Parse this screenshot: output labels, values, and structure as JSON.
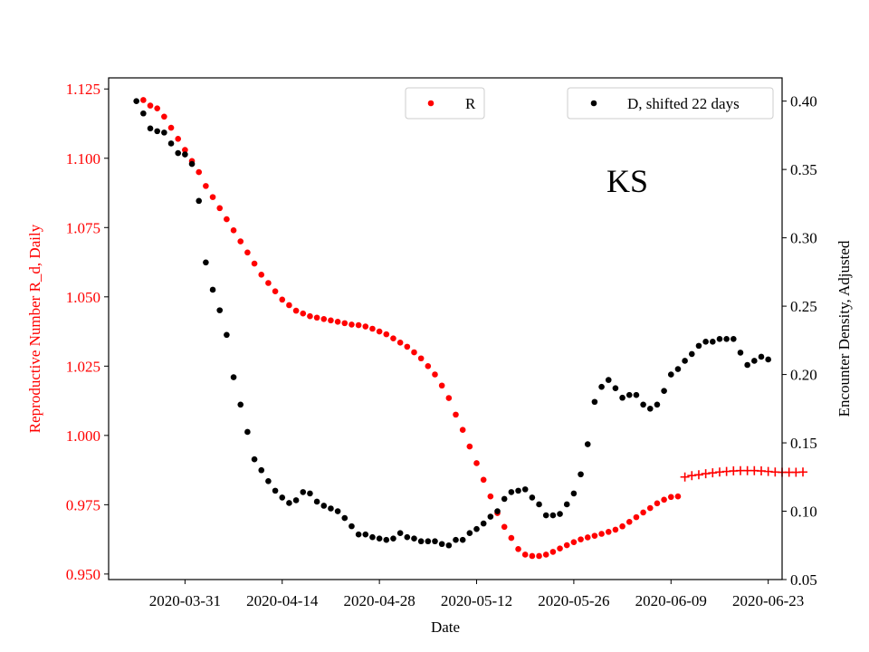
{
  "chart_data": {
    "type": "scatter",
    "annotation": "KS",
    "xlabel": "Date",
    "ylabel_left": "Reproductive Number R_d, Daily",
    "ylabel_right": "Encounter Density, Adjusted",
    "x_ticks": [
      "2020-03-31",
      "2020-04-14",
      "2020-04-28",
      "2020-05-12",
      "2020-05-26",
      "2020-06-09",
      "2020-06-23"
    ],
    "y_left_ticks": [
      "0.950",
      "0.975",
      "1.000",
      "1.025",
      "1.050",
      "1.075",
      "1.100",
      "1.125"
    ],
    "y_right_ticks": [
      "0.05",
      "0.10",
      "0.15",
      "0.20",
      "0.25",
      "0.30",
      "0.35",
      "0.40"
    ],
    "ylim_left": [
      0.948,
      1.129
    ],
    "ylim_right": [
      0.05,
      0.417
    ],
    "xlim": [
      "2020-03-20",
      "2020-06-25"
    ],
    "colors": {
      "R": "#ff0000",
      "D": "#000000",
      "left_axis": "#ff0000",
      "right_axis": "#000000"
    },
    "legend_placement": "top",
    "legends": [
      {
        "label": "R",
        "color": "#ff0000"
      },
      {
        "label": "D, shifted 22 days",
        "color": "#000000"
      }
    ],
    "series": [
      {
        "name": "R",
        "axis": "left",
        "marker": "dot",
        "start_date": "2020-03-25",
        "values": [
          1.121,
          1.119,
          1.118,
          1.115,
          1.111,
          1.107,
          1.103,
          1.099,
          1.095,
          1.09,
          1.086,
          1.082,
          1.078,
          1.074,
          1.07,
          1.066,
          1.062,
          1.058,
          1.055,
          1.052,
          1.049,
          1.047,
          1.045,
          1.044,
          1.043,
          1.0425,
          1.042,
          1.0415,
          1.041,
          1.0405,
          1.04,
          1.0398,
          1.0393,
          1.0385,
          1.0375,
          1.0365,
          1.035,
          1.0335,
          1.032,
          1.03,
          1.0278,
          1.025,
          1.022,
          1.018,
          1.0135,
          1.0075,
          1.002,
          0.996,
          0.99,
          0.984,
          0.978,
          0.972,
          0.967,
          0.963,
          0.959,
          0.957,
          0.9565,
          0.9565,
          0.957,
          0.958,
          0.9592,
          0.9604,
          0.9615,
          0.9625,
          0.9632,
          0.9638,
          0.9645,
          0.9652,
          0.966,
          0.9672,
          0.9688,
          0.9705,
          0.9722,
          0.9738,
          0.9755,
          0.9768,
          0.9778,
          0.978
        ]
      },
      {
        "name": "R",
        "axis": "left",
        "marker": "plus",
        "start_date": "2020-06-11",
        "values": [
          0.985,
          0.9855,
          0.9858,
          0.9862,
          0.9865,
          0.9868,
          0.987,
          0.9872,
          0.9873,
          0.9873,
          0.9873,
          0.9872,
          0.987,
          0.9868,
          0.9867,
          0.9867,
          0.9867,
          0.9868
        ]
      },
      {
        "name": "D, shifted 22 days",
        "axis": "right",
        "marker": "dot",
        "start_date": "2020-03-24",
        "values": [
          0.4,
          0.391,
          0.38,
          0.378,
          0.377,
          0.369,
          0.362,
          0.361,
          0.354,
          0.327,
          0.282,
          0.262,
          0.247,
          0.229,
          0.198,
          0.178,
          0.158,
          0.138,
          0.13,
          0.122,
          0.115,
          0.11,
          0.106,
          0.108,
          0.114,
          0.113,
          0.107,
          0.104,
          0.102,
          0.1,
          0.095,
          0.089,
          0.083,
          0.083,
          0.081,
          0.08,
          0.079,
          0.08,
          0.084,
          0.081,
          0.08,
          0.078,
          0.078,
          0.078,
          0.076,
          0.075,
          0.079,
          0.079,
          0.084,
          0.087,
          0.091,
          0.096,
          0.1,
          0.109,
          0.114,
          0.115,
          0.116,
          0.11,
          0.105,
          0.097,
          0.097,
          0.098,
          0.105,
          0.113,
          0.127,
          0.149,
          0.18,
          0.191,
          0.196,
          0.19,
          0.183,
          0.185,
          0.185,
          0.178,
          0.175,
          0.178,
          0.188,
          0.2,
          0.204,
          0.21,
          0.215,
          0.221,
          0.224,
          0.224,
          0.226,
          0.226,
          0.226,
          0.216,
          0.207,
          0.21,
          0.213,
          0.211
        ]
      }
    ]
  }
}
